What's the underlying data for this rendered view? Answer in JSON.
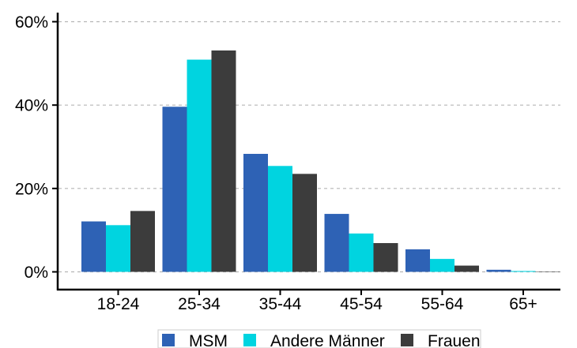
{
  "chart_data": {
    "type": "bar",
    "categories": [
      "18-24",
      "25-34",
      "35-44",
      "45-54",
      "55-64",
      "65+"
    ],
    "series": [
      {
        "name": "MSM",
        "color": "#2e62b5",
        "values": [
          12.1,
          39.6,
          28.3,
          13.9,
          5.4,
          0.5
        ]
      },
      {
        "name": "Andere Männer",
        "color": "#00d4e0",
        "values": [
          11.2,
          50.9,
          25.4,
          9.2,
          3.1,
          0.2
        ]
      },
      {
        "name": "Frauen",
        "color": "#3c3c3c",
        "values": [
          14.6,
          53.1,
          23.5,
          6.9,
          1.5,
          0.1
        ]
      }
    ],
    "y_ticks": [
      {
        "value": 0,
        "label": "0%"
      },
      {
        "value": 20,
        "label": "20%"
      },
      {
        "value": 40,
        "label": "40%"
      },
      {
        "value": 60,
        "label": "60%"
      }
    ],
    "ylim": [
      0,
      62
    ],
    "grid": "horizontal dashed",
    "legend_position": "bottom",
    "title": "",
    "xlabel": "",
    "ylabel": ""
  }
}
